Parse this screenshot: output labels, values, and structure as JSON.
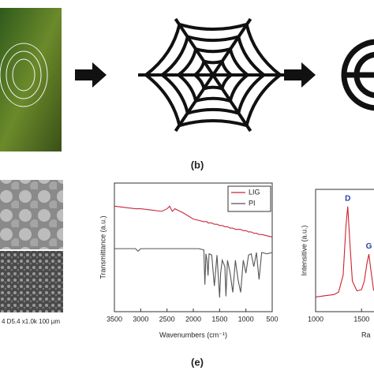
{
  "labels": {
    "b": "(b)",
    "e": "(e)"
  },
  "sem_caption": "4  D5.4  x1.0k  100 µm",
  "chart_data": [
    {
      "type": "line",
      "ylabel": "Transmittance (a.u.)",
      "xlabel": "Wavenumbers (cm⁻¹)",
      "xlim": [
        3500,
        500
      ],
      "ylim": [
        0,
        100
      ],
      "xticks": [
        3500,
        3000,
        2500,
        2000,
        1500,
        1000,
        500
      ],
      "legend": "upper right",
      "x": [
        3500,
        3300,
        3100,
        3050,
        3000,
        2800,
        2600,
        2500,
        2450,
        2400,
        2350,
        2300,
        2200,
        2000,
        1900,
        1800,
        1780,
        1760,
        1740,
        1720,
        1700,
        1650,
        1600,
        1550,
        1500,
        1480,
        1450,
        1400,
        1380,
        1350,
        1300,
        1250,
        1200,
        1150,
        1100,
        1050,
        1000,
        950,
        900,
        850,
        800,
        750,
        700,
        600,
        500
      ],
      "series": [
        {
          "name": "LIG",
          "color": "#c8283c",
          "values": [
            82,
            81,
            80,
            80,
            80,
            79,
            78,
            80,
            82,
            78,
            80,
            79,
            77,
            72,
            71,
            70,
            70,
            70,
            70,
            69,
            69,
            69,
            68,
            68,
            67,
            67,
            67,
            66,
            66,
            66,
            65,
            65,
            64,
            64,
            64,
            63,
            63,
            62,
            62,
            61,
            61,
            60,
            60,
            59,
            58
          ]
        },
        {
          "name": "PI",
          "color": "#555555",
          "values": [
            49,
            49,
            49,
            47,
            49,
            49,
            49,
            49,
            49,
            49,
            49,
            49,
            49,
            49,
            49,
            48,
            21,
            45,
            40,
            28,
            45,
            44,
            20,
            44,
            11,
            30,
            40,
            35,
            12,
            40,
            30,
            15,
            40,
            25,
            15,
            40,
            30,
            44,
            45,
            35,
            46,
            25,
            46,
            45,
            46
          ]
        }
      ]
    },
    {
      "type": "line",
      "ylabel": "Intensitive (a.u.)",
      "xlabel": "Ra",
      "xlim": [
        1000,
        1670
      ],
      "ylim": [
        0,
        100
      ],
      "xticks": [
        1000,
        1500
      ],
      "annotations": [
        {
          "text": "D",
          "x": 1350,
          "y": 86
        },
        {
          "text": "G",
          "x": 1580,
          "y": 47
        }
      ],
      "x": [
        1000,
        1100,
        1200,
        1250,
        1300,
        1330,
        1350,
        1370,
        1400,
        1450,
        1500,
        1530,
        1560,
        1580,
        1600,
        1630,
        1670
      ],
      "series": [
        {
          "name": null,
          "color": "#d02030",
          "values": [
            12,
            13,
            14,
            16,
            30,
            70,
            86,
            60,
            25,
            17,
            18,
            25,
            40,
            47,
            35,
            18,
            14
          ]
        }
      ]
    }
  ]
}
